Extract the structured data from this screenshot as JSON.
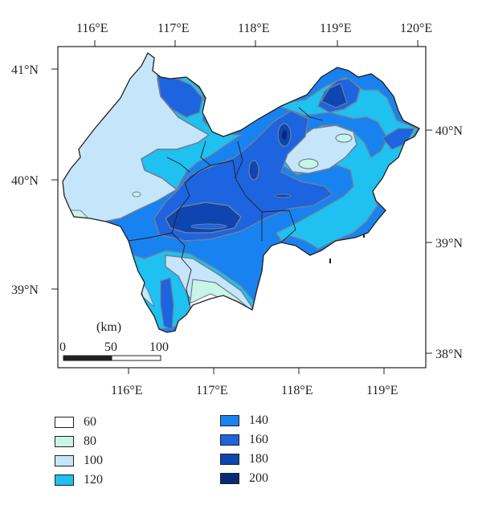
{
  "top_lon_labels": [
    "116°E",
    "117°E",
    "118°E",
    "119°E",
    "120°E"
  ],
  "bottom_lon_labels": [
    "116°E",
    "117°E",
    "118°E",
    "119°E"
  ],
  "left_lat_labels": [
    "41°N",
    "40°N",
    "39°N"
  ],
  "right_lat_labels": [
    "40°N",
    "39°N",
    "38°N"
  ],
  "scale_bar": {
    "unit_label": "(km)",
    "ticks": [
      "0",
      "50",
      "100"
    ]
  },
  "legend": {
    "items": [
      {
        "label": "60",
        "color": "#ffffff"
      },
      {
        "label": "80",
        "color": "#c8f5e6"
      },
      {
        "label": "100",
        "color": "#c5e6fa"
      },
      {
        "label": "120",
        "color": "#1ec1f0"
      },
      {
        "label": "140",
        "color": "#1882f0"
      },
      {
        "label": "160",
        "color": "#1c64e0"
      },
      {
        "label": "180",
        "color": "#0f45b0"
      },
      {
        "label": "200",
        "color": "#072a78"
      }
    ]
  },
  "colors": {
    "boundary": "#231f20",
    "contour": "#6f7f99",
    "frame": "#231f20"
  }
}
